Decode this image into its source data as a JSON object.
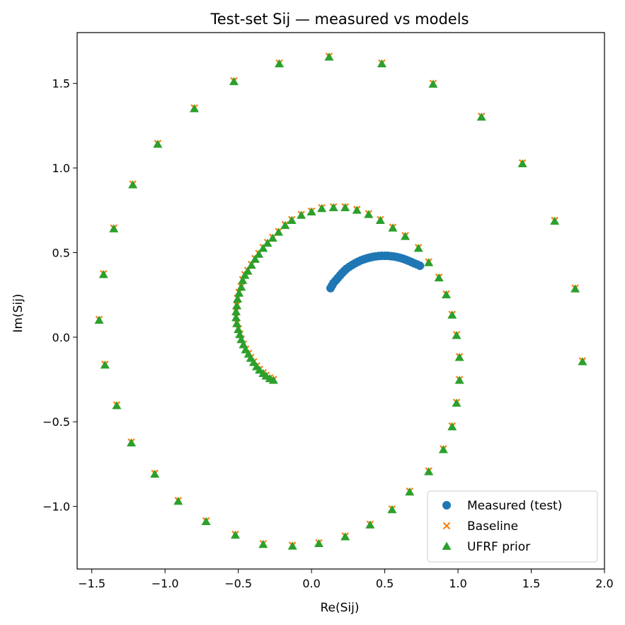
{
  "chart_data": {
    "type": "scatter",
    "title": "Test-set Sij — measured vs models",
    "xlabel": "Re(Sij)",
    "ylabel": "Im(Sij)",
    "xlim": [
      -1.6,
      2.0
    ],
    "ylim": [
      -1.37,
      1.8
    ],
    "xticks": [
      -1.5,
      -1.0,
      -0.5,
      0.0,
      0.5,
      1.0,
      1.5,
      2.0
    ],
    "xtick_labels": [
      "−1.5",
      "−1.0",
      "−0.5",
      "0.0",
      "0.5",
      "1.0",
      "1.5",
      "2.0"
    ],
    "yticks": [
      -1.0,
      -0.5,
      0.0,
      0.5,
      1.0,
      1.5
    ],
    "ytick_labels": [
      "−1.0",
      "−0.5",
      "0.0",
      "0.5",
      "1.0",
      "1.5"
    ],
    "grid": false,
    "legend_position": "lower-right",
    "series": [
      {
        "name": "Measured (test)",
        "marker": "circle",
        "color": "#1f77b4",
        "points": [
          [
            0.13,
            0.29
          ],
          [
            0.14,
            0.305
          ],
          [
            0.15,
            0.32
          ],
          [
            0.165,
            0.335
          ],
          [
            0.18,
            0.35
          ],
          [
            0.195,
            0.365
          ],
          [
            0.21,
            0.38
          ],
          [
            0.225,
            0.393
          ],
          [
            0.24,
            0.405
          ],
          [
            0.26,
            0.417
          ],
          [
            0.28,
            0.428
          ],
          [
            0.3,
            0.438
          ],
          [
            0.32,
            0.447
          ],
          [
            0.34,
            0.455
          ],
          [
            0.36,
            0.461
          ],
          [
            0.38,
            0.467
          ],
          [
            0.4,
            0.471
          ],
          [
            0.42,
            0.475
          ],
          [
            0.44,
            0.478
          ],
          [
            0.46,
            0.48
          ],
          [
            0.48,
            0.481
          ],
          [
            0.5,
            0.481
          ],
          [
            0.52,
            0.481
          ],
          [
            0.54,
            0.479
          ],
          [
            0.56,
            0.477
          ],
          [
            0.58,
            0.474
          ],
          [
            0.6,
            0.47
          ],
          [
            0.62,
            0.465
          ],
          [
            0.64,
            0.459
          ],
          [
            0.66,
            0.452
          ],
          [
            0.68,
            0.445
          ],
          [
            0.7,
            0.437
          ],
          [
            0.72,
            0.43
          ],
          [
            0.74,
            0.422
          ]
        ]
      },
      {
        "name": "Baseline",
        "marker": "x",
        "color": "#ff7f0e",
        "points": [
          [
            -0.26,
            -0.25
          ],
          [
            -0.285,
            -0.24
          ],
          [
            -0.31,
            -0.225
          ],
          [
            -0.33,
            -0.21
          ],
          [
            -0.355,
            -0.19
          ],
          [
            -0.375,
            -0.17
          ],
          [
            -0.395,
            -0.145
          ],
          [
            -0.415,
            -0.12
          ],
          [
            -0.43,
            -0.095
          ],
          [
            -0.45,
            -0.07
          ],
          [
            -0.465,
            -0.04
          ],
          [
            -0.48,
            -0.01
          ],
          [
            -0.49,
            0.02
          ],
          [
            -0.5,
            0.05
          ],
          [
            -0.51,
            0.085
          ],
          [
            -0.515,
            0.12
          ],
          [
            -0.515,
            0.155
          ],
          [
            -0.51,
            0.19
          ],
          [
            -0.505,
            0.23
          ],
          [
            -0.495,
            0.265
          ],
          [
            -0.48,
            0.3
          ],
          [
            -0.47,
            0.34
          ],
          [
            -0.455,
            0.37
          ],
          [
            -0.435,
            0.395
          ],
          [
            -0.41,
            0.43
          ],
          [
            -0.385,
            0.465
          ],
          [
            -0.36,
            0.495
          ],
          [
            -0.33,
            0.53
          ],
          [
            -0.3,
            0.56
          ],
          [
            -0.265,
            0.59
          ],
          [
            -0.225,
            0.625
          ],
          [
            -0.18,
            0.665
          ],
          [
            -0.135,
            0.695
          ],
          [
            -0.07,
            0.725
          ],
          [
            0.0,
            0.745
          ],
          [
            0.07,
            0.765
          ],
          [
            0.15,
            0.77
          ],
          [
            0.23,
            0.77
          ],
          [
            0.31,
            0.755
          ],
          [
            0.39,
            0.73
          ],
          [
            0.47,
            0.695
          ],
          [
            0.555,
            0.65
          ],
          [
            0.64,
            0.6
          ],
          [
            0.73,
            0.53
          ],
          [
            0.8,
            0.445
          ],
          [
            0.87,
            0.355
          ],
          [
            0.92,
            0.255
          ],
          [
            0.96,
            0.135
          ],
          [
            0.99,
            0.015
          ],
          [
            1.01,
            -0.115
          ],
          [
            1.01,
            -0.25
          ],
          [
            0.99,
            -0.385
          ],
          [
            0.96,
            -0.525
          ],
          [
            0.9,
            -0.66
          ],
          [
            0.8,
            -0.79
          ],
          [
            0.67,
            -0.91
          ],
          [
            0.55,
            -1.015
          ],
          [
            0.4,
            -1.105
          ],
          [
            0.23,
            -1.175
          ],
          [
            0.05,
            -1.215
          ],
          [
            -0.13,
            -1.23
          ],
          [
            -0.33,
            -1.22
          ],
          [
            -0.52,
            -1.165
          ],
          [
            -0.72,
            -1.085
          ],
          [
            -0.91,
            -0.965
          ],
          [
            -1.07,
            -0.805
          ],
          [
            -1.23,
            -0.62
          ],
          [
            -1.33,
            -0.4
          ],
          [
            -1.41,
            -0.16
          ],
          [
            -1.45,
            0.105
          ],
          [
            -1.42,
            0.375
          ],
          [
            -1.35,
            0.645
          ],
          [
            -1.22,
            0.905
          ],
          [
            -1.05,
            1.145
          ],
          [
            -0.8,
            1.355
          ],
          [
            -0.53,
            1.515
          ],
          [
            -0.22,
            1.62
          ],
          [
            0.12,
            1.66
          ],
          [
            0.48,
            1.62
          ],
          [
            0.83,
            1.5
          ],
          [
            1.16,
            1.305
          ],
          [
            1.44,
            1.03
          ],
          [
            1.66,
            0.69
          ],
          [
            1.8,
            0.29
          ],
          [
            1.85,
            -0.14
          ]
        ]
      },
      {
        "name": "UFRF prior",
        "marker": "triangle",
        "color": "#2ca02c",
        "points": [
          [
            -0.26,
            -0.255
          ],
          [
            -0.285,
            -0.245
          ],
          [
            -0.31,
            -0.23
          ],
          [
            -0.33,
            -0.215
          ],
          [
            -0.355,
            -0.195
          ],
          [
            -0.375,
            -0.175
          ],
          [
            -0.395,
            -0.15
          ],
          [
            -0.415,
            -0.125
          ],
          [
            -0.43,
            -0.1
          ],
          [
            -0.45,
            -0.075
          ],
          [
            -0.465,
            -0.045
          ],
          [
            -0.48,
            -0.015
          ],
          [
            -0.49,
            0.015
          ],
          [
            -0.5,
            0.045
          ],
          [
            -0.51,
            0.08
          ],
          [
            -0.515,
            0.115
          ],
          [
            -0.515,
            0.15
          ],
          [
            -0.51,
            0.185
          ],
          [
            -0.505,
            0.225
          ],
          [
            -0.495,
            0.26
          ],
          [
            -0.48,
            0.295
          ],
          [
            -0.47,
            0.335
          ],
          [
            -0.455,
            0.365
          ],
          [
            -0.435,
            0.39
          ],
          [
            -0.41,
            0.425
          ],
          [
            -0.385,
            0.46
          ],
          [
            -0.36,
            0.49
          ],
          [
            -0.33,
            0.525
          ],
          [
            -0.3,
            0.555
          ],
          [
            -0.265,
            0.585
          ],
          [
            -0.225,
            0.62
          ],
          [
            -0.18,
            0.66
          ],
          [
            -0.135,
            0.69
          ],
          [
            -0.07,
            0.72
          ],
          [
            0.0,
            0.74
          ],
          [
            0.07,
            0.76
          ],
          [
            0.15,
            0.765
          ],
          [
            0.23,
            0.765
          ],
          [
            0.31,
            0.75
          ],
          [
            0.39,
            0.725
          ],
          [
            0.47,
            0.69
          ],
          [
            0.555,
            0.645
          ],
          [
            0.64,
            0.595
          ],
          [
            0.73,
            0.525
          ],
          [
            0.8,
            0.44
          ],
          [
            0.87,
            0.35
          ],
          [
            0.92,
            0.25
          ],
          [
            0.96,
            0.13
          ],
          [
            0.99,
            0.01
          ],
          [
            1.01,
            -0.12
          ],
          [
            1.01,
            -0.255
          ],
          [
            0.99,
            -0.39
          ],
          [
            0.96,
            -0.53
          ],
          [
            0.9,
            -0.665
          ],
          [
            0.8,
            -0.795
          ],
          [
            0.67,
            -0.915
          ],
          [
            0.55,
            -1.02
          ],
          [
            0.4,
            -1.11
          ],
          [
            0.23,
            -1.18
          ],
          [
            0.05,
            -1.22
          ],
          [
            -0.13,
            -1.235
          ],
          [
            -0.33,
            -1.225
          ],
          [
            -0.52,
            -1.17
          ],
          [
            -0.72,
            -1.09
          ],
          [
            -0.91,
            -0.97
          ],
          [
            -1.07,
            -0.81
          ],
          [
            -1.23,
            -0.625
          ],
          [
            -1.33,
            -0.405
          ],
          [
            -1.41,
            -0.165
          ],
          [
            -1.45,
            0.1
          ],
          [
            -1.42,
            0.37
          ],
          [
            -1.35,
            0.64
          ],
          [
            -1.22,
            0.9
          ],
          [
            -1.05,
            1.14
          ],
          [
            -0.8,
            1.35
          ],
          [
            -0.53,
            1.51
          ],
          [
            -0.22,
            1.615
          ],
          [
            0.12,
            1.655
          ],
          [
            0.48,
            1.615
          ],
          [
            0.83,
            1.495
          ],
          [
            1.16,
            1.3
          ],
          [
            1.44,
            1.025
          ],
          [
            1.66,
            0.685
          ],
          [
            1.8,
            0.285
          ],
          [
            1.85,
            -0.145
          ]
        ]
      }
    ]
  }
}
